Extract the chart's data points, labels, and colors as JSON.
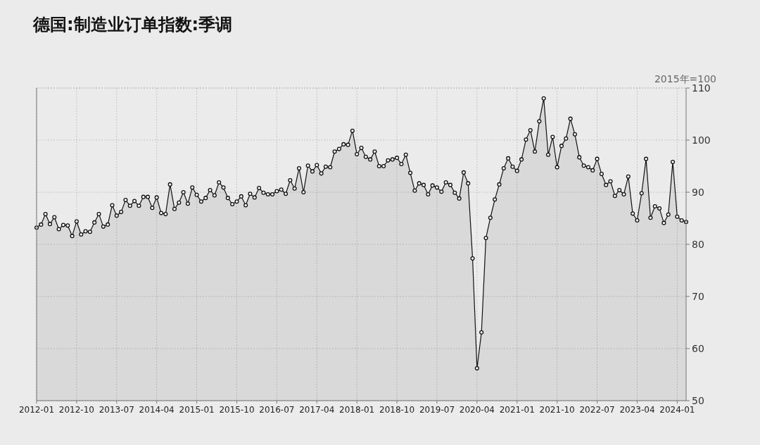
{
  "chart_data": {
    "type": "area",
    "title": "德国:制造业订单指数:季调",
    "ylabel": "2015年=100",
    "x": [
      "2012-01",
      "2012-02",
      "2012-03",
      "2012-04",
      "2012-05",
      "2012-06",
      "2012-07",
      "2012-08",
      "2012-09",
      "2012-10",
      "2012-11",
      "2012-12",
      "2013-01",
      "2013-02",
      "2013-03",
      "2013-04",
      "2013-05",
      "2013-06",
      "2013-07",
      "2013-08",
      "2013-09",
      "2013-10",
      "2013-11",
      "2013-12",
      "2014-01",
      "2014-02",
      "2014-03",
      "2014-04",
      "2014-05",
      "2014-06",
      "2014-07",
      "2014-08",
      "2014-09",
      "2014-10",
      "2014-11",
      "2014-12",
      "2015-01",
      "2015-02",
      "2015-03",
      "2015-04",
      "2015-05",
      "2015-06",
      "2015-07",
      "2015-08",
      "2015-09",
      "2015-10",
      "2015-11",
      "2015-12",
      "2016-01",
      "2016-02",
      "2016-03",
      "2016-04",
      "2016-05",
      "2016-06",
      "2016-07",
      "2016-08",
      "2016-09",
      "2016-10",
      "2016-11",
      "2016-12",
      "2017-01",
      "2017-02",
      "2017-03",
      "2017-04",
      "2017-05",
      "2017-06",
      "2017-07",
      "2017-08",
      "2017-09",
      "2017-10",
      "2017-11",
      "2017-12",
      "2018-01",
      "2018-02",
      "2018-03",
      "2018-04",
      "2018-05",
      "2018-06",
      "2018-07",
      "2018-08",
      "2018-09",
      "2018-10",
      "2018-11",
      "2018-12",
      "2019-01",
      "2019-02",
      "2019-03",
      "2019-04",
      "2019-05",
      "2019-06",
      "2019-07",
      "2019-08",
      "2019-09",
      "2019-10",
      "2019-11",
      "2019-12",
      "2020-01",
      "2020-02",
      "2020-03",
      "2020-04",
      "2020-05",
      "2020-06",
      "2020-07",
      "2020-08",
      "2020-09",
      "2020-10",
      "2020-11",
      "2020-12",
      "2021-01",
      "2021-02",
      "2021-03",
      "2021-04",
      "2021-05",
      "2021-06",
      "2021-07",
      "2021-08",
      "2021-09",
      "2021-10",
      "2021-11",
      "2021-12",
      "2022-01",
      "2022-02",
      "2022-03",
      "2022-04",
      "2022-05",
      "2022-06",
      "2022-07",
      "2022-08",
      "2022-09",
      "2022-10",
      "2022-11",
      "2022-12",
      "2023-01",
      "2023-02",
      "2023-03",
      "2023-04",
      "2023-05",
      "2023-06",
      "2023-07",
      "2023-08",
      "2023-09",
      "2023-10",
      "2023-11",
      "2023-12",
      "2024-01",
      "2024-02",
      "2024-03"
    ],
    "series": [
      {
        "color": "#111111",
        "values": [
          83.2,
          83.8,
          85.8,
          83.9,
          85.2,
          82.9,
          83.7,
          83.6,
          81.6,
          84.4,
          81.9,
          82.5,
          82.4,
          84.2,
          85.8,
          83.4,
          83.8,
          87.5,
          85.5,
          86.2,
          88.5,
          87.4,
          88.3,
          87.4,
          89.1,
          89.1,
          87.0,
          89.0,
          86.0,
          85.8,
          91.5,
          86.8,
          88.0,
          90.0,
          87.8,
          90.9,
          89.5,
          88.2,
          88.9,
          90.4,
          89.4,
          91.9,
          90.9,
          88.9,
          87.7,
          88.2,
          89.2,
          87.5,
          89.7,
          89.0,
          90.8,
          89.9,
          89.6,
          89.6,
          90.2,
          90.5,
          89.7,
          92.3,
          90.7,
          94.6,
          90.0,
          95.1,
          94.0,
          95.2,
          93.6,
          94.9,
          94.8,
          97.8,
          98.3,
          99.2,
          99.1,
          101.8,
          97.3,
          98.5,
          96.8,
          96.3,
          97.8,
          95.0,
          95.0,
          96.1,
          96.3,
          96.6,
          95.4,
          97.2,
          93.7,
          90.3,
          91.7,
          91.4,
          89.6,
          91.3,
          90.9,
          90.1,
          91.9,
          91.4,
          89.9,
          88.8,
          93.8,
          91.7,
          77.3,
          56.2,
          63.1,
          81.2,
          85.1,
          88.6,
          91.5,
          94.6,
          96.5,
          94.9,
          94.1,
          96.3,
          100.1,
          101.9,
          97.8,
          103.6,
          108.0,
          97.2,
          100.6,
          94.8,
          98.9,
          100.3,
          104.1,
          101.1,
          96.7,
          95.1,
          94.8,
          94.2,
          96.4,
          93.5,
          91.4,
          92.1,
          89.3,
          90.4,
          89.6,
          93.0,
          85.9,
          84.6,
          89.8,
          96.4,
          85.1,
          87.3,
          86.9,
          84.1,
          85.7,
          95.8,
          85.3,
          84.6,
          84.3
        ]
      }
    ],
    "xlim": [
      "2012-01",
      "2024-03"
    ],
    "xticks": [
      "2012-01",
      "2012-10",
      "2013-07",
      "2014-04",
      "2015-01",
      "2015-10",
      "2016-07",
      "2017-04",
      "2018-01",
      "2018-10",
      "2019-07",
      "2020-04",
      "2021-01",
      "2021-10",
      "2022-07",
      "2023-04",
      "2024-01"
    ],
    "ylim": [
      50,
      110
    ],
    "yticks": [
      50,
      60,
      70,
      80,
      90,
      100,
      110
    ],
    "grid": true,
    "marker": "circle",
    "line_style": "solid"
  }
}
